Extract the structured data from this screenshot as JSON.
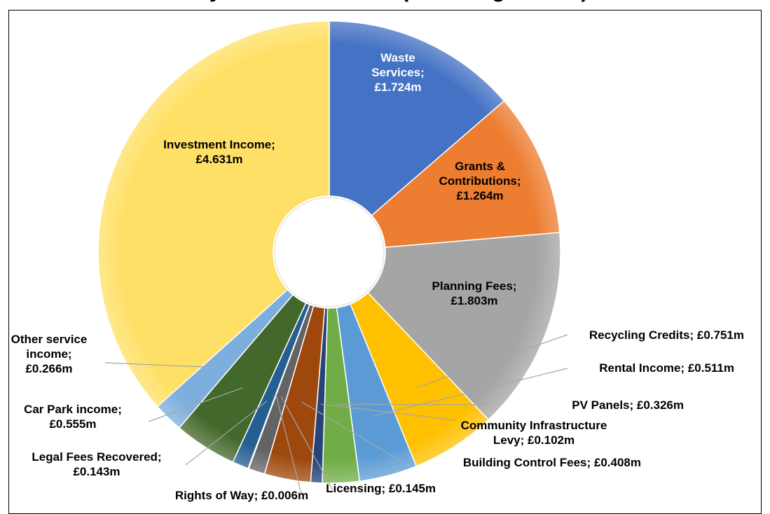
{
  "chart_data": {
    "type": "pie",
    "title": "Key Income Streams (Including Grants)",
    "series": [
      {
        "name": "",
        "categories": [
          "Waste Services",
          "Grants & Contributions",
          "Planning Fees",
          "Recycling Credits",
          "Rental Income",
          "PV Panels",
          "Community Infrastructure Levy",
          "Building Control Fees",
          "Licensing",
          "Rights of Way",
          "Legal Fees Recovered",
          "Car Park income",
          "Other service income",
          "Investment Income"
        ],
        "values": [
          1.724,
          1.264,
          1.803,
          0.751,
          0.511,
          0.326,
          0.102,
          0.408,
          0.145,
          0.006,
          0.143,
          0.555,
          0.266,
          4.631
        ]
      }
    ],
    "slices": [
      {
        "name": "Waste Services",
        "value": 1.724,
        "label_lines": [
          "Waste",
          "Services;",
          "£1.724m"
        ],
        "color": "#4472C4",
        "label_color": "#ffffff"
      },
      {
        "name": "Grants & Contributions",
        "value": 1.264,
        "label_lines": [
          "Grants &",
          "Contributions;",
          "£1.264m"
        ],
        "color": "#ED7D31",
        "label_color": "#000000"
      },
      {
        "name": "Planning Fees",
        "value": 1.803,
        "label_lines": [
          "Planning Fees;",
          "£1.803m"
        ],
        "color": "#A5A5A5",
        "label_color": "#000000"
      },
      {
        "name": "Recycling Credits",
        "value": 0.751,
        "label_lines": [
          "Recycling Credits; £0.751m"
        ],
        "color": "#FFC000",
        "label_color": "#000000"
      },
      {
        "name": "Rental Income",
        "value": 0.511,
        "label_lines": [
          "Rental Income; £0.511m"
        ],
        "color": "#5B9BD5",
        "label_color": "#000000"
      },
      {
        "name": "PV Panels",
        "value": 0.326,
        "label_lines": [
          "PV Panels; £0.326m"
        ],
        "color": "#70AD47",
        "label_color": "#000000"
      },
      {
        "name": "Community Infrastructure Levy",
        "value": 0.102,
        "label_lines": [
          "Community Infrastructure",
          "Levy; £0.102m"
        ],
        "color": "#264478",
        "label_color": "#000000"
      },
      {
        "name": "Building Control Fees",
        "value": 0.408,
        "label_lines": [
          "Building Control Fees; £0.408m"
        ],
        "color": "#9E480E",
        "label_color": "#000000"
      },
      {
        "name": "Licensing",
        "value": 0.145,
        "label_lines": [
          "Licensing; £0.145m"
        ],
        "color": "#636363",
        "label_color": "#000000"
      },
      {
        "name": "Rights of Way",
        "value": 0.006,
        "label_lines": [
          "Rights of Way; £0.006m"
        ],
        "color": "#997300",
        "label_color": "#000000"
      },
      {
        "name": "Legal Fees Recovered",
        "value": 0.143,
        "label_lines": [
          "Legal Fees Recovered;",
          "£0.143m"
        ],
        "color": "#255E91",
        "label_color": "#000000"
      },
      {
        "name": "Car Park income",
        "value": 0.555,
        "label_lines": [
          "Car Park income;",
          "£0.555m"
        ],
        "color": "#43682B",
        "label_color": "#000000"
      },
      {
        "name": "Other service income",
        "value": 0.266,
        "label_lines": [
          "Other service",
          "income;",
          "£0.266m"
        ],
        "color": "#7CAFDD",
        "label_color": "#000000"
      },
      {
        "name": "Investment Income",
        "value": 4.631,
        "label_lines": [
          "Investment Income;",
          "£4.631m"
        ],
        "color": "#FFE066",
        "label_color": "#000000"
      }
    ]
  }
}
